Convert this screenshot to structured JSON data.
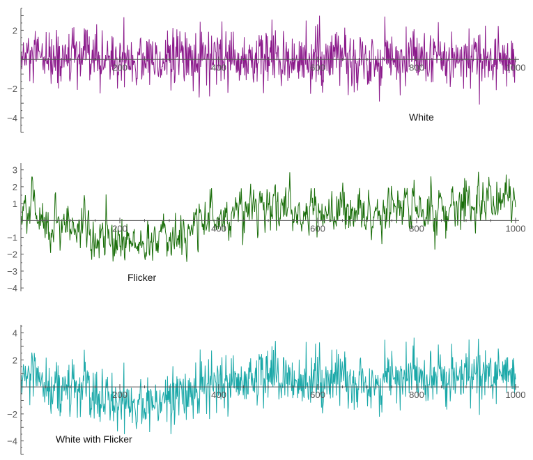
{
  "chart_data": [
    {
      "type": "line",
      "annotation": "White",
      "color": "#8b1a8b",
      "xlim": [
        0,
        1000
      ],
      "ylim": [
        -5,
        3.5
      ],
      "xticks": [
        200,
        400,
        600,
        800,
        1000
      ],
      "yticks": [
        -4,
        -2,
        2
      ],
      "series": [
        {
          "n": 1000,
          "noise": "white",
          "mean": 0,
          "std": 1.0,
          "min": -3.6,
          "max": 3.0
        }
      ]
    },
    {
      "type": "line",
      "annotation": "Flicker",
      "color": "#1a6e0a",
      "xlim": [
        0,
        1000
      ],
      "ylim": [
        -4.2,
        3.4
      ],
      "xticks": [
        200,
        400,
        600,
        800,
        1000
      ],
      "yticks": [
        -4,
        -3,
        -2,
        -1,
        1,
        2,
        3
      ],
      "series": [
        {
          "n": 1000,
          "noise": "flicker",
          "trend": [
            [
              0,
              0.8
            ],
            [
              100,
              -0.3
            ],
            [
              250,
              -1.6
            ],
            [
              400,
              0.2
            ],
            [
              500,
              0.8
            ],
            [
              650,
              0.4
            ],
            [
              800,
              0.8
            ],
            [
              1000,
              0.9
            ]
          ],
          "min": -2.9,
          "max": 3.0
        }
      ]
    },
    {
      "type": "line",
      "annotation": "White with Flicker",
      "color": "#1aa8a8",
      "xlim": [
        0,
        1000
      ],
      "ylim": [
        -5,
        4.6
      ],
      "xticks": [
        200,
        400,
        600,
        800,
        1000
      ],
      "yticks": [
        -4,
        -2,
        2,
        4
      ],
      "series": [
        {
          "n": 1000,
          "noise": "white+flicker",
          "min": -4.0,
          "max": 4.2
        }
      ]
    }
  ]
}
